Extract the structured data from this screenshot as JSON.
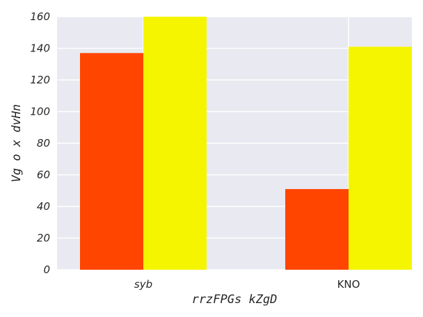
{
  "chart_data": {
    "type": "bar",
    "categories": [
      "syb",
      "KNO"
    ],
    "category_italic": [
      true,
      false
    ],
    "series": [
      {
        "values": [
          137,
          51
        ],
        "color": "#ff4500"
      },
      {
        "values": [
          160,
          141
        ],
        "color": "#f5f500"
      }
    ],
    "xlabel": "rrzFPGs kZgD",
    "ylabel": "Vg o x dvHn",
    "ylim": [
      0,
      160
    ],
    "yticks": [
      0,
      20,
      40,
      60,
      80,
      100,
      120,
      140,
      160
    ],
    "grid": true,
    "plot_background": "#e9e9f1",
    "grid_color": "#ffffff"
  }
}
